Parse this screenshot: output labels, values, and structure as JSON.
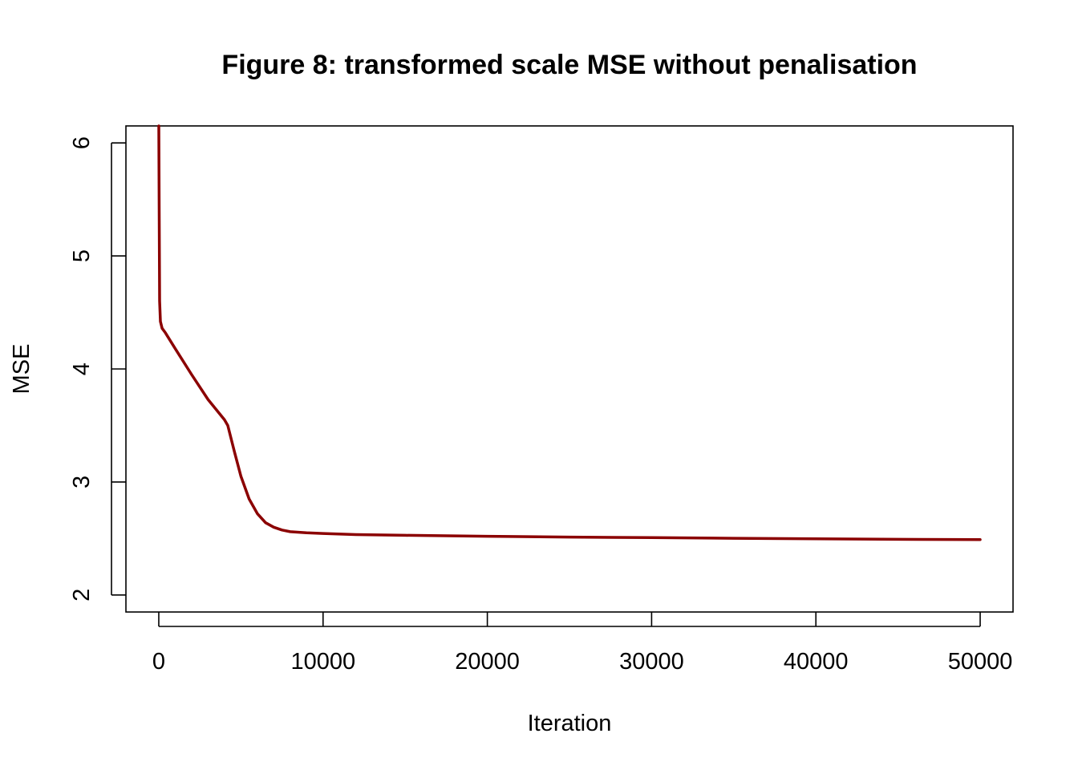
{
  "chart_data": {
    "type": "line",
    "title": "Figure 8: transformed scale MSE without penalisation",
    "xlabel": "Iteration",
    "ylabel": "MSE",
    "xlim": [
      -2000,
      52000
    ],
    "ylim": [
      1.85,
      6.15
    ],
    "x_ticks": [
      0,
      10000,
      20000,
      30000,
      40000,
      50000
    ],
    "y_ticks": [
      2,
      3,
      4,
      5,
      6
    ],
    "grid": false,
    "legend": "none",
    "series": [
      {
        "color": "#8B0000",
        "x": [
          0,
          20,
          50,
          100,
          200,
          400,
          1000,
          2000,
          3000,
          4000,
          4200,
          4600,
          5000,
          5500,
          6000,
          6500,
          7000,
          7500,
          8000,
          9000,
          10000,
          12000,
          15000,
          20000,
          25000,
          30000,
          35000,
          40000,
          45000,
          50000
        ],
        "y": [
          6.15,
          5.5,
          4.6,
          4.42,
          4.36,
          4.32,
          4.18,
          3.95,
          3.73,
          3.55,
          3.5,
          3.27,
          3.05,
          2.85,
          2.72,
          2.64,
          2.6,
          2.575,
          2.56,
          2.55,
          2.545,
          2.535,
          2.528,
          2.52,
          2.513,
          2.508,
          2.502,
          2.497,
          2.493,
          2.49
        ]
      }
    ]
  }
}
